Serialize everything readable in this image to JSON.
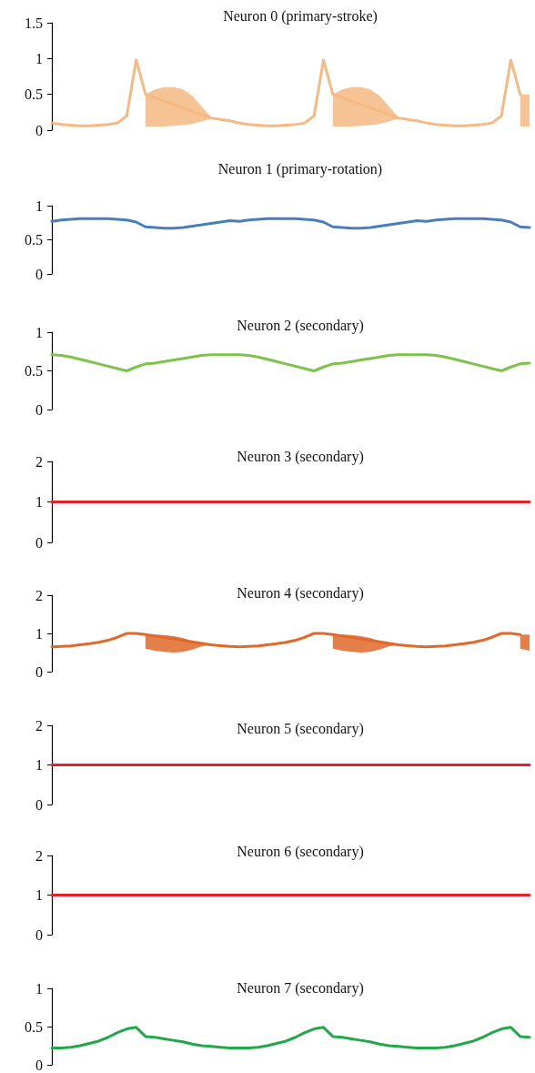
{
  "chart_data": [
    {
      "type": "line",
      "title": "Neuron 0 (primary-stroke)",
      "categories": [
        null,
        null,
        null,
        null,
        null,
        null,
        null,
        null,
        null,
        null,
        null,
        null,
        null,
        null,
        null,
        null,
        null,
        null,
        null,
        null,
        null,
        null,
        null,
        null,
        null,
        null,
        null,
        null,
        null,
        null,
        null,
        null,
        null,
        null,
        null,
        null,
        null,
        null,
        null,
        null,
        null,
        null,
        null,
        null,
        null,
        null,
        null,
        null,
        null,
        null,
        null,
        null
      ],
      "ylim": [
        0,
        1.5
      ],
      "yticks": [
        0,
        0.5,
        1,
        1.5
      ],
      "grid": false,
      "tick_labels": "y",
      "marker": "none",
      "series": [
        {
          "color": "#f5b983",
          "values": [
            0.1,
            0.08,
            0.07,
            0.06,
            0.06,
            0.07,
            0.08,
            0.1,
            0.2,
            0.98,
            0.5,
            null,
            null,
            null,
            null,
            null,
            null,
            0.17,
            0.15,
            0.13,
            0.1,
            0.08,
            0.07,
            0.06,
            0.06,
            0.07,
            0.08,
            0.1,
            0.2,
            0.98,
            0.5,
            null,
            null,
            null,
            null,
            null,
            null,
            0.17,
            0.15,
            0.13,
            0.1,
            0.08,
            0.07,
            0.06,
            0.06,
            0.07,
            0.08,
            0.1,
            0.2,
            0.98,
            0.5,
            null
          ],
          "upper": [
            null,
            null,
            null,
            null,
            null,
            null,
            null,
            null,
            null,
            null,
            0.5,
            0.57,
            0.6,
            0.6,
            0.57,
            0.48,
            0.33,
            0.18,
            null,
            null,
            null,
            null,
            null,
            null,
            null,
            null,
            null,
            null,
            null,
            null,
            0.5,
            0.57,
            0.6,
            0.6,
            0.57,
            0.48,
            0.33,
            0.18,
            null,
            null,
            null,
            null,
            null,
            null,
            null,
            null,
            null,
            null,
            null,
            null,
            0.5,
            0.5
          ],
          "lower": [
            null,
            null,
            null,
            null,
            null,
            null,
            null,
            null,
            null,
            null,
            0.05,
            0.05,
            0.05,
            0.06,
            0.07,
            0.09,
            0.12,
            0.16,
            null,
            null,
            null,
            null,
            null,
            null,
            null,
            null,
            null,
            null,
            null,
            null,
            0.05,
            0.05,
            0.05,
            0.06,
            0.07,
            0.09,
            0.12,
            0.16,
            null,
            null,
            null,
            null,
            null,
            null,
            null,
            null,
            null,
            null,
            null,
            null,
            0.05,
            0.05
          ]
        }
      ]
    },
    {
      "type": "line",
      "title": "Neuron 1 (primary-rotation)",
      "categories": [
        null,
        null,
        null,
        null,
        null,
        null,
        null,
        null,
        null,
        null,
        null,
        null,
        null,
        null,
        null,
        null,
        null,
        null,
        null,
        null,
        null,
        null,
        null,
        null,
        null,
        null,
        null,
        null,
        null,
        null,
        null,
        null,
        null,
        null,
        null,
        null,
        null,
        null,
        null,
        null,
        null,
        null,
        null,
        null,
        null,
        null,
        null,
        null,
        null,
        null,
        null,
        null
      ],
      "ylim": [
        0,
        1
      ],
      "yticks": [
        0,
        0.5,
        1
      ],
      "grid": false,
      "tick_labels": "y",
      "marker": "none",
      "series": [
        {
          "color": "#4a7ebb",
          "values": [
            0.77,
            0.79,
            0.8,
            0.81,
            0.81,
            0.81,
            0.81,
            0.8,
            0.79,
            0.76,
            0.69,
            0.68,
            0.67,
            0.67,
            0.68,
            0.7,
            0.72,
            0.74,
            0.76,
            0.78,
            0.77,
            0.79,
            0.8,
            0.81,
            0.81,
            0.81,
            0.81,
            0.8,
            0.79,
            0.76,
            0.69,
            0.68,
            0.67,
            0.67,
            0.68,
            0.7,
            0.72,
            0.74,
            0.76,
            0.78,
            0.77,
            0.79,
            0.8,
            0.81,
            0.81,
            0.81,
            0.81,
            0.8,
            0.79,
            0.76,
            0.69,
            0.68
          ]
        }
      ]
    },
    {
      "type": "line",
      "title": "Neuron 2 (secondary)",
      "categories": [
        null,
        null,
        null,
        null,
        null,
        null,
        null,
        null,
        null,
        null,
        null,
        null,
        null,
        null,
        null,
        null,
        null,
        null,
        null,
        null,
        null,
        null,
        null,
        null,
        null,
        null,
        null,
        null,
        null,
        null,
        null,
        null,
        null,
        null,
        null,
        null,
        null,
        null,
        null,
        null,
        null,
        null,
        null,
        null,
        null,
        null,
        null,
        null,
        null,
        null,
        null,
        null
      ],
      "ylim": [
        0,
        1
      ],
      "yticks": [
        0,
        0.5,
        1
      ],
      "grid": false,
      "tick_labels": "y",
      "marker": "none",
      "series": [
        {
          "color": "#7dc24b",
          "values": [
            0.71,
            0.7,
            0.68,
            0.65,
            0.62,
            0.59,
            0.56,
            0.53,
            0.5,
            0.55,
            0.59,
            0.6,
            0.62,
            0.64,
            0.66,
            0.68,
            0.7,
            0.71,
            0.71,
            0.71,
            0.71,
            0.7,
            0.68,
            0.65,
            0.62,
            0.59,
            0.56,
            0.53,
            0.5,
            0.55,
            0.59,
            0.6,
            0.62,
            0.64,
            0.66,
            0.68,
            0.7,
            0.71,
            0.71,
            0.71,
            0.71,
            0.7,
            0.68,
            0.65,
            0.62,
            0.59,
            0.56,
            0.53,
            0.5,
            0.55,
            0.59,
            0.6
          ]
        }
      ]
    },
    {
      "type": "line",
      "title": "Neuron 3 (secondary)",
      "categories": [
        null,
        null,
        null,
        null,
        null,
        null,
        null,
        null,
        null,
        null,
        null,
        null,
        null,
        null,
        null,
        null,
        null,
        null,
        null,
        null,
        null,
        null,
        null,
        null,
        null,
        null,
        null,
        null,
        null,
        null,
        null,
        null,
        null,
        null,
        null,
        null,
        null,
        null,
        null,
        null,
        null,
        null,
        null,
        null,
        null,
        null,
        null,
        null,
        null,
        null,
        null,
        null
      ],
      "ylim": [
        0,
        2
      ],
      "yticks": [
        0,
        1,
        2
      ],
      "grid": false,
      "tick_labels": "y",
      "marker": "none",
      "series": [
        {
          "color": "#e8202a",
          "values": [
            1,
            1,
            1,
            1,
            1,
            1,
            1,
            1,
            1,
            1,
            1,
            1,
            1,
            1,
            1,
            1,
            1,
            1,
            1,
            1,
            1,
            1,
            1,
            1,
            1,
            1,
            1,
            1,
            1,
            1,
            1,
            1,
            1,
            1,
            1,
            1,
            1,
            1,
            1,
            1,
            1,
            1,
            1,
            1,
            1,
            1,
            1,
            1,
            1,
            1,
            1,
            1
          ]
        }
      ]
    },
    {
      "type": "line",
      "title": "Neuron 4 (secondary)",
      "categories": [
        null,
        null,
        null,
        null,
        null,
        null,
        null,
        null,
        null,
        null,
        null,
        null,
        null,
        null,
        null,
        null,
        null,
        null,
        null,
        null,
        null,
        null,
        null,
        null,
        null,
        null,
        null,
        null,
        null,
        null,
        null,
        null,
        null,
        null,
        null,
        null,
        null,
        null,
        null,
        null,
        null,
        null,
        null,
        null,
        null,
        null,
        null,
        null,
        null,
        null,
        null,
        null
      ],
      "ylim": [
        0,
        2
      ],
      "yticks": [
        0,
        1,
        2
      ],
      "grid": false,
      "tick_labels": "y",
      "marker": "none",
      "series": [
        {
          "color": "#e0692a",
          "values": [
            0.65,
            0.66,
            0.67,
            0.7,
            0.73,
            0.77,
            0.82,
            0.9,
            1,
            1,
            0.97,
            null,
            null,
            null,
            null,
            null,
            null,
            0.7,
            0.68,
            0.66,
            0.65,
            0.66,
            0.67,
            0.7,
            0.73,
            0.77,
            0.82,
            0.9,
            1,
            1,
            0.97,
            null,
            null,
            null,
            null,
            null,
            null,
            0.7,
            0.68,
            0.66,
            0.65,
            0.66,
            0.67,
            0.7,
            0.73,
            0.77,
            0.82,
            0.9,
            1,
            1,
            0.97,
            null
          ],
          "upper": [
            null,
            null,
            null,
            null,
            null,
            null,
            null,
            null,
            null,
            null,
            0.97,
            0.97,
            0.96,
            0.93,
            0.88,
            0.8,
            0.72,
            0.7,
            null,
            null,
            null,
            null,
            null,
            null,
            null,
            null,
            null,
            null,
            null,
            null,
            0.97,
            0.97,
            0.96,
            0.93,
            0.88,
            0.8,
            0.72,
            0.7,
            null,
            null,
            null,
            null,
            null,
            null,
            null,
            null,
            null,
            null,
            null,
            null,
            0.97,
            0.97
          ],
          "lower": [
            null,
            null,
            null,
            null,
            null,
            null,
            null,
            null,
            null,
            null,
            0.6,
            0.55,
            0.52,
            0.5,
            0.52,
            0.58,
            0.66,
            0.7,
            null,
            null,
            null,
            null,
            null,
            null,
            null,
            null,
            null,
            null,
            null,
            null,
            0.6,
            0.55,
            0.52,
            0.5,
            0.52,
            0.58,
            0.66,
            0.7,
            null,
            null,
            null,
            null,
            null,
            null,
            null,
            null,
            null,
            null,
            null,
            null,
            0.6,
            0.55
          ]
        }
      ]
    },
    {
      "type": "line",
      "title": "Neuron 5 (secondary)",
      "categories": [
        null,
        null,
        null,
        null,
        null,
        null,
        null,
        null,
        null,
        null,
        null,
        null,
        null,
        null,
        null,
        null,
        null,
        null,
        null,
        null,
        null,
        null,
        null,
        null,
        null,
        null,
        null,
        null,
        null,
        null,
        null,
        null,
        null,
        null,
        null,
        null,
        null,
        null,
        null,
        null,
        null,
        null,
        null,
        null,
        null,
        null,
        null,
        null,
        null,
        null,
        null,
        null
      ],
      "ylim": [
        0,
        2
      ],
      "yticks": [
        0,
        1,
        2
      ],
      "grid": false,
      "tick_labels": "y",
      "marker": "none",
      "series": [
        {
          "color": "#e8202a",
          "values": [
            1,
            1,
            1,
            1,
            1,
            1,
            1,
            1,
            1,
            1,
            1,
            1,
            1,
            1,
            1,
            1,
            1,
            1,
            1,
            1,
            1,
            1,
            1,
            1,
            1,
            1,
            1,
            1,
            1,
            1,
            1,
            1,
            1,
            1,
            1,
            1,
            1,
            1,
            1,
            1,
            1,
            1,
            1,
            1,
            1,
            1,
            1,
            1,
            1,
            1,
            1,
            1
          ]
        }
      ]
    },
    {
      "type": "line",
      "title": "Neuron 6 (secondary)",
      "categories": [
        null,
        null,
        null,
        null,
        null,
        null,
        null,
        null,
        null,
        null,
        null,
        null,
        null,
        null,
        null,
        null,
        null,
        null,
        null,
        null,
        null,
        null,
        null,
        null,
        null,
        null,
        null,
        null,
        null,
        null,
        null,
        null,
        null,
        null,
        null,
        null,
        null,
        null,
        null,
        null,
        null,
        null,
        null,
        null,
        null,
        null,
        null,
        null,
        null,
        null,
        null,
        null
      ],
      "ylim": [
        0,
        2
      ],
      "yticks": [
        0,
        1,
        2
      ],
      "grid": false,
      "tick_labels": "y",
      "marker": "none",
      "series": [
        {
          "color": "#e8202a",
          "values": [
            1,
            1,
            1,
            1,
            1,
            1,
            1,
            1,
            1,
            1,
            1,
            1,
            1,
            1,
            1,
            1,
            1,
            1,
            1,
            1,
            1,
            1,
            1,
            1,
            1,
            1,
            1,
            1,
            1,
            1,
            1,
            1,
            1,
            1,
            1,
            1,
            1,
            1,
            1,
            1,
            1,
            1,
            1,
            1,
            1,
            1,
            1,
            1,
            1,
            1,
            1,
            1
          ]
        }
      ]
    },
    {
      "type": "line",
      "title": "Neuron 7 (secondary)",
      "categories": [
        null,
        null,
        null,
        null,
        null,
        null,
        null,
        null,
        null,
        null,
        null,
        null,
        null,
        null,
        null,
        null,
        null,
        null,
        null,
        null,
        null,
        null,
        null,
        null,
        null,
        null,
        null,
        null,
        null,
        null,
        null,
        null,
        null,
        null,
        null,
        null,
        null,
        null,
        null,
        null,
        null,
        null,
        null,
        null,
        null,
        null,
        null,
        null,
        null,
        null,
        null,
        null
      ],
      "ylim": [
        0,
        1
      ],
      "yticks": [
        0,
        0.5,
        1
      ],
      "grid": false,
      "tick_labels": "y",
      "marker": "none",
      "series": [
        {
          "color": "#22a84a",
          "values": [
            0.22,
            0.22,
            0.23,
            0.25,
            0.28,
            0.31,
            0.36,
            0.42,
            0.47,
            0.49,
            0.37,
            0.36,
            0.34,
            0.32,
            0.3,
            0.27,
            0.25,
            0.24,
            0.23,
            0.22,
            0.22,
            0.22,
            0.23,
            0.25,
            0.28,
            0.31,
            0.36,
            0.42,
            0.47,
            0.49,
            0.37,
            0.36,
            0.34,
            0.32,
            0.3,
            0.27,
            0.25,
            0.24,
            0.23,
            0.22,
            0.22,
            0.22,
            0.23,
            0.25,
            0.28,
            0.31,
            0.36,
            0.42,
            0.47,
            0.49,
            0.37,
            0.36
          ]
        }
      ]
    }
  ]
}
